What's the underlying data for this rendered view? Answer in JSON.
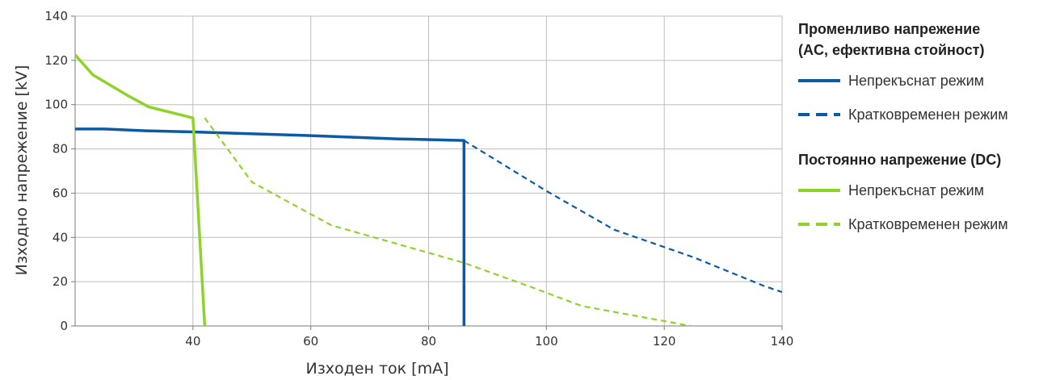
{
  "chart_data": {
    "type": "line",
    "xlabel": "Изходен ток [mA]",
    "ylabel": "Изходно напрежение [kV]",
    "xlim": [
      20,
      140
    ],
    "ylim": [
      0,
      140
    ],
    "xticks": [
      40,
      60,
      80,
      100,
      120,
      140
    ],
    "yticks": [
      0,
      20,
      40,
      60,
      80,
      100,
      120,
      140
    ],
    "grid": true,
    "legend_position": "right",
    "legend_groups": [
      {
        "title_lines": [
          "Променливо напрежение",
          "(AC, ефективна стойност)"
        ],
        "entries": [
          {
            "series": 0,
            "label": "Непрекъснат режим"
          },
          {
            "series": 1,
            "label": "Кратковременен режим"
          }
        ]
      },
      {
        "title_lines": [
          "Постоянно напрежение (DC)"
        ],
        "entries": [
          {
            "series": 2,
            "label": "Непрекъснат режим"
          },
          {
            "series": 3,
            "label": "Кратковременен режим"
          }
        ]
      }
    ],
    "series": [
      {
        "group": "AC",
        "mode": "continuous",
        "color": "#0a5aa5",
        "dash": "solid",
        "points": [
          [
            20,
            89
          ],
          [
            25,
            89
          ],
          [
            32,
            88.2
          ],
          [
            40,
            87.7
          ],
          [
            48,
            87
          ],
          [
            60,
            86
          ],
          [
            75,
            84.5
          ],
          [
            86,
            83.8
          ],
          [
            86,
            0
          ]
        ]
      },
      {
        "group": "AC",
        "mode": "short-term",
        "color": "#0a5aa5",
        "dash": "dashed",
        "points": [
          [
            86,
            83.8
          ],
          [
            100,
            61
          ],
          [
            111.5,
            43.5
          ],
          [
            125,
            31
          ],
          [
            137,
            18
          ],
          [
            157,
            0
          ]
        ]
      },
      {
        "group": "DC",
        "mode": "continuous",
        "color": "#8fd32a",
        "dash": "solid",
        "points": [
          [
            20,
            122.5
          ],
          [
            23,
            113.5
          ],
          [
            29,
            104
          ],
          [
            32.5,
            99
          ],
          [
            40,
            94
          ],
          [
            42,
            0
          ]
        ]
      },
      {
        "group": "DC",
        "mode": "short-term",
        "color": "#8fd32a",
        "dash": "dashed",
        "points": [
          [
            42,
            94
          ],
          [
            50,
            65
          ],
          [
            63.5,
            45.5
          ],
          [
            86,
            28.5
          ],
          [
            97.5,
            17.5
          ],
          [
            106,
            9
          ],
          [
            124.5,
            0
          ]
        ]
      }
    ]
  },
  "colors": {
    "ac": "#0a5aa5",
    "dc": "#8fd32a",
    "grid": "#bdbdbd",
    "axis": "#7a7a7a"
  }
}
